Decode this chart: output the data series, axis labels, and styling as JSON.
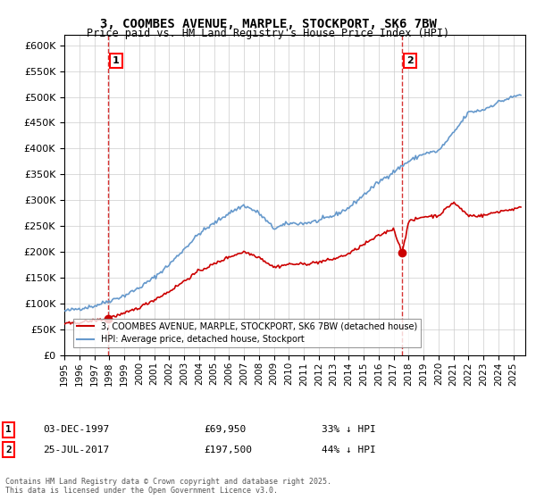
{
  "title_line1": "3, COOMBES AVENUE, MARPLE, STOCKPORT, SK6 7BW",
  "title_line2": "Price paid vs. HM Land Registry's House Price Index (HPI)",
  "legend_label_red": "3, COOMBES AVENUE, MARPLE, STOCKPORT, SK6 7BW (detached house)",
  "legend_label_blue": "HPI: Average price, detached house, Stockport",
  "annotation1_label": "1",
  "annotation1_date": "03-DEC-1997",
  "annotation1_price": "£69,950",
  "annotation1_hpi": "33% ↓ HPI",
  "annotation2_label": "2",
  "annotation2_date": "25-JUL-2017",
  "annotation2_price": "£197,500",
  "annotation2_hpi": "44% ↓ HPI",
  "footnote": "Contains HM Land Registry data © Crown copyright and database right 2025.\nThis data is licensed under the Open Government Licence v3.0.",
  "sale1_year": 1997.92,
  "sale1_price": 69950,
  "sale2_year": 2017.56,
  "sale2_price": 197500,
  "ylim_max": 620000,
  "ylim_min": 0,
  "red_color": "#cc0000",
  "blue_color": "#6699cc",
  "dashed_color": "#cc0000",
  "background_color": "#ffffff",
  "grid_color": "#cccccc"
}
